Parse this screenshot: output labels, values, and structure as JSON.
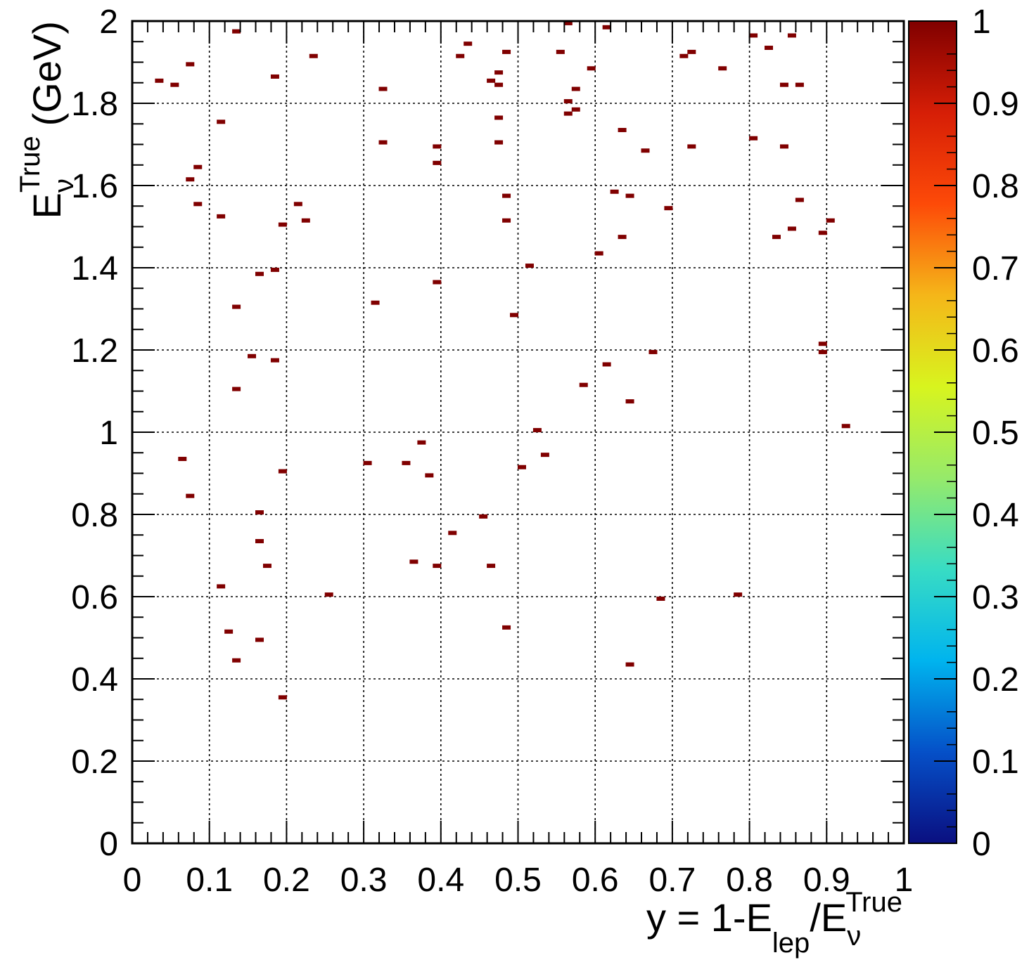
{
  "chart_data": {
    "type": "heatmap",
    "title": "",
    "xlabel": {
      "main": "y = 1-E",
      "sub": "lep",
      "slash": "/E",
      "sub2": "ν",
      "sup": "True"
    },
    "ylabel": {
      "main": "E",
      "sub": "ν",
      "sup": "True",
      "unit": "(GeV)"
    },
    "xlim": [
      0,
      1
    ],
    "ylim": [
      0,
      2
    ],
    "x_ticks": [
      {
        "value": 0,
        "label": "0"
      },
      {
        "value": 0.1,
        "label": "0.1"
      },
      {
        "value": 0.2,
        "label": "0.2"
      },
      {
        "value": 0.3,
        "label": "0.3"
      },
      {
        "value": 0.4,
        "label": "0.4"
      },
      {
        "value": 0.5,
        "label": "0.5"
      },
      {
        "value": 0.6,
        "label": "0.6"
      },
      {
        "value": 0.7,
        "label": "0.7"
      },
      {
        "value": 0.8,
        "label": "0.8"
      },
      {
        "value": 0.9,
        "label": "0.9"
      },
      {
        "value": 1,
        "label": "1"
      }
    ],
    "y_ticks": [
      {
        "value": 0,
        "label": "0"
      },
      {
        "value": 0.2,
        "label": "0.2"
      },
      {
        "value": 0.4,
        "label": "0.4"
      },
      {
        "value": 0.6,
        "label": "0.6"
      },
      {
        "value": 0.8,
        "label": "0.8"
      },
      {
        "value": 1.0,
        "label": "1"
      },
      {
        "value": 1.2,
        "label": "1.2"
      },
      {
        "value": 1.4,
        "label": "1.4"
      },
      {
        "value": 1.6,
        "label": "1.6"
      },
      {
        "value": 1.8,
        "label": "1.8"
      },
      {
        "value": 2.0,
        "label": "2"
      }
    ],
    "grid": true,
    "colorbar": {
      "range": [
        0,
        1
      ],
      "ticks": [
        {
          "value": 0,
          "label": "0"
        },
        {
          "value": 0.1,
          "label": "0.1"
        },
        {
          "value": 0.2,
          "label": "0.2"
        },
        {
          "value": 0.3,
          "label": "0.3"
        },
        {
          "value": 0.4,
          "label": "0.4"
        },
        {
          "value": 0.5,
          "label": "0.5"
        },
        {
          "value": 0.6,
          "label": "0.6"
        },
        {
          "value": 0.7,
          "label": "0.7"
        },
        {
          "value": 0.8,
          "label": "0.8"
        },
        {
          "value": 0.9,
          "label": "0.9"
        },
        {
          "value": 1,
          "label": "1"
        }
      ],
      "colors": [
        "#0a0f80",
        "#0550c8",
        "#00b4ee",
        "#38dcc4",
        "#96ea6a",
        "#d8f41e",
        "#f5b619",
        "#fd4a08",
        "#d61e06",
        "#800000"
      ]
    },
    "bin_color": "#800000",
    "bin_value": 1,
    "bin_size": {
      "x": 0.01,
      "y": 0.01
    },
    "cells": [
      {
        "x": 0.035,
        "y": 1.855
      },
      {
        "x": 0.055,
        "y": 1.845
      },
      {
        "x": 0.075,
        "y": 1.895
      },
      {
        "x": 0.135,
        "y": 1.975
      },
      {
        "x": 0.185,
        "y": 1.865
      },
      {
        "x": 0.235,
        "y": 1.915
      },
      {
        "x": 0.325,
        "y": 1.835
      },
      {
        "x": 0.425,
        "y": 1.915
      },
      {
        "x": 0.435,
        "y": 1.945
      },
      {
        "x": 0.465,
        "y": 1.855
      },
      {
        "x": 0.475,
        "y": 1.875
      },
      {
        "x": 0.475,
        "y": 1.845
      },
      {
        "x": 0.485,
        "y": 1.925
      },
      {
        "x": 0.555,
        "y": 1.925
      },
      {
        "x": 0.565,
        "y": 1.995
      },
      {
        "x": 0.565,
        "y": 1.805
      },
      {
        "x": 0.575,
        "y": 1.835
      },
      {
        "x": 0.595,
        "y": 1.885
      },
      {
        "x": 0.615,
        "y": 1.985
      },
      {
        "x": 0.715,
        "y": 1.915
      },
      {
        "x": 0.725,
        "y": 1.925
      },
      {
        "x": 0.765,
        "y": 1.885
      },
      {
        "x": 0.805,
        "y": 1.965
      },
      {
        "x": 0.825,
        "y": 1.935
      },
      {
        "x": 0.845,
        "y": 1.845
      },
      {
        "x": 0.855,
        "y": 1.965
      },
      {
        "x": 0.865,
        "y": 1.845
      },
      {
        "x": 0.115,
        "y": 1.755
      },
      {
        "x": 0.325,
        "y": 1.705
      },
      {
        "x": 0.395,
        "y": 1.695
      },
      {
        "x": 0.395,
        "y": 1.655
      },
      {
        "x": 0.475,
        "y": 1.765
      },
      {
        "x": 0.475,
        "y": 1.705
      },
      {
        "x": 0.565,
        "y": 1.775
      },
      {
        "x": 0.575,
        "y": 1.785
      },
      {
        "x": 0.635,
        "y": 1.735
      },
      {
        "x": 0.665,
        "y": 1.685
      },
      {
        "x": 0.725,
        "y": 1.695
      },
      {
        "x": 0.805,
        "y": 1.715
      },
      {
        "x": 0.845,
        "y": 1.695
      },
      {
        "x": 0.085,
        "y": 1.645
      },
      {
        "x": 0.075,
        "y": 1.615
      },
      {
        "x": 0.085,
        "y": 1.555
      },
      {
        "x": 0.115,
        "y": 1.525
      },
      {
        "x": 0.195,
        "y": 1.505
      },
      {
        "x": 0.215,
        "y": 1.555
      },
      {
        "x": 0.225,
        "y": 1.515
      },
      {
        "x": 0.485,
        "y": 1.575
      },
      {
        "x": 0.485,
        "y": 1.515
      },
      {
        "x": 0.625,
        "y": 1.585
      },
      {
        "x": 0.645,
        "y": 1.575
      },
      {
        "x": 0.695,
        "y": 1.545
      },
      {
        "x": 0.635,
        "y": 1.475
      },
      {
        "x": 0.865,
        "y": 1.565
      },
      {
        "x": 0.855,
        "y": 1.495
      },
      {
        "x": 0.835,
        "y": 1.475
      },
      {
        "x": 0.895,
        "y": 1.485
      },
      {
        "x": 0.905,
        "y": 1.515
      },
      {
        "x": 0.165,
        "y": 1.385
      },
      {
        "x": 0.185,
        "y": 1.395
      },
      {
        "x": 0.395,
        "y": 1.365
      },
      {
        "x": 0.515,
        "y": 1.405
      },
      {
        "x": 0.605,
        "y": 1.435
      },
      {
        "x": 0.135,
        "y": 1.305
      },
      {
        "x": 0.315,
        "y": 1.315
      },
      {
        "x": 0.495,
        "y": 1.285
      },
      {
        "x": 0.155,
        "y": 1.185
      },
      {
        "x": 0.185,
        "y": 1.175
      },
      {
        "x": 0.675,
        "y": 1.195
      },
      {
        "x": 0.615,
        "y": 1.165
      },
      {
        "x": 0.895,
        "y": 1.215
      },
      {
        "x": 0.895,
        "y": 1.195
      },
      {
        "x": 0.135,
        "y": 1.105
      },
      {
        "x": 0.585,
        "y": 1.115
      },
      {
        "x": 0.645,
        "y": 1.075
      },
      {
        "x": 0.525,
        "y": 1.005
      },
      {
        "x": 0.925,
        "y": 1.015
      },
      {
        "x": 0.065,
        "y": 0.935
      },
      {
        "x": 0.195,
        "y": 0.905
      },
      {
        "x": 0.305,
        "y": 0.925
      },
      {
        "x": 0.355,
        "y": 0.925
      },
      {
        "x": 0.375,
        "y": 0.975
      },
      {
        "x": 0.385,
        "y": 0.895
      },
      {
        "x": 0.505,
        "y": 0.915
      },
      {
        "x": 0.535,
        "y": 0.945
      },
      {
        "x": 0.075,
        "y": 0.845
      },
      {
        "x": 0.165,
        "y": 0.805
      },
      {
        "x": 0.455,
        "y": 0.795
      },
      {
        "x": 0.165,
        "y": 0.735
      },
      {
        "x": 0.415,
        "y": 0.755
      },
      {
        "x": 0.175,
        "y": 0.675
      },
      {
        "x": 0.365,
        "y": 0.685
      },
      {
        "x": 0.395,
        "y": 0.675
      },
      {
        "x": 0.465,
        "y": 0.675
      },
      {
        "x": 0.115,
        "y": 0.625
      },
      {
        "x": 0.255,
        "y": 0.605
      },
      {
        "x": 0.685,
        "y": 0.595
      },
      {
        "x": 0.785,
        "y": 0.605
      },
      {
        "x": 0.125,
        "y": 0.515
      },
      {
        "x": 0.165,
        "y": 0.495
      },
      {
        "x": 0.485,
        "y": 0.525
      },
      {
        "x": 0.135,
        "y": 0.445
      },
      {
        "x": 0.645,
        "y": 0.435
      },
      {
        "x": 0.195,
        "y": 0.355
      }
    ]
  }
}
